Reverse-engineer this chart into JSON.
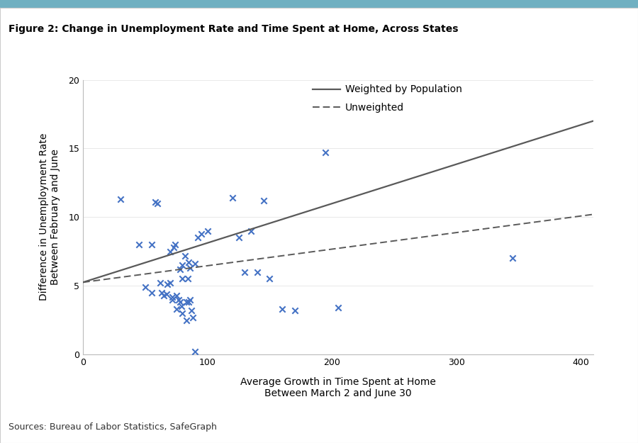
{
  "title": "Figure 2: Change in Unemployment Rate and Time Spent at Home, Across States",
  "xlabel_line1": "Average Growth in Time Spent at Home",
  "xlabel_line2": "Between March 2 and June 30",
  "ylabel_line1": "Difference in Unemployment Rate",
  "ylabel_line2": "Between February and June",
  "source": "Sources: Bureau of Labor Statistics, SafeGraph",
  "scatter_x": [
    30,
    45,
    50,
    55,
    55,
    58,
    60,
    62,
    63,
    65,
    67,
    68,
    70,
    70,
    72,
    72,
    73,
    74,
    75,
    75,
    77,
    78,
    78,
    79,
    80,
    80,
    80,
    82,
    83,
    83,
    84,
    85,
    85,
    86,
    86,
    87,
    88,
    90,
    90,
    92,
    95,
    100,
    120,
    125,
    130,
    135,
    140,
    145,
    150,
    160,
    170,
    195,
    205,
    345
  ],
  "scatter_y": [
    11.3,
    8.0,
    4.9,
    4.5,
    8.0,
    11.1,
    11.0,
    5.2,
    4.5,
    4.3,
    4.4,
    5.1,
    5.2,
    7.5,
    4.2,
    4.0,
    7.8,
    8.0,
    4.3,
    3.3,
    4.0,
    3.8,
    6.2,
    3.5,
    6.5,
    5.5,
    3.0,
    7.2,
    3.8,
    2.5,
    5.5,
    3.8,
    6.7,
    6.3,
    4.0,
    3.2,
    2.7,
    0.2,
    6.6,
    8.5,
    8.8,
    9.0,
    11.4,
    8.5,
    6.0,
    9.0,
    6.0,
    11.2,
    5.5,
    3.3,
    3.2,
    14.7,
    3.4,
    7.0
  ],
  "weighted_line_x": [
    0,
    410
  ],
  "weighted_line_y": [
    5.25,
    17.0
  ],
  "unweighted_line_x": [
    0,
    410
  ],
  "unweighted_line_y": [
    5.25,
    10.2
  ],
  "scatter_color": "#4472C4",
  "weighted_color": "#595959",
  "unweighted_color": "#595959",
  "xlim": [
    0,
    410
  ],
  "ylim": [
    0,
    20
  ],
  "xticks": [
    0,
    100,
    200,
    300,
    400
  ],
  "yticks": [
    0,
    5,
    10,
    15,
    20
  ],
  "title_fontsize": 10,
  "axis_fontsize": 10,
  "tick_fontsize": 9,
  "source_fontsize": 9,
  "marker": "x",
  "marker_size": 6,
  "marker_linewidth": 1.5,
  "figure_bg": "#ffffff",
  "top_bar_color": "#70B0C1",
  "border_color": "#C0C0C0",
  "legend_weighted_label": "Weighted by Population",
  "legend_unweighted_label": "Unweighted"
}
